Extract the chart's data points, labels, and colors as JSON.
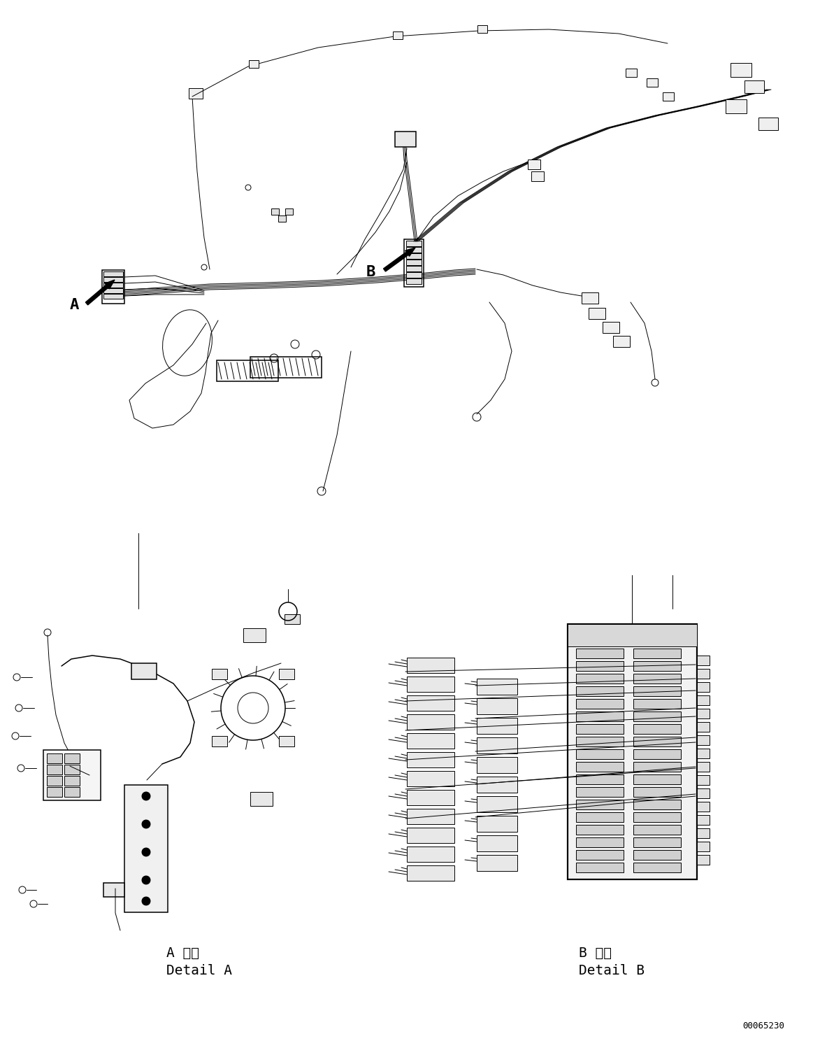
{
  "background_color": "#ffffff",
  "line_color": "#000000",
  "fig_width": 11.63,
  "fig_height": 14.88,
  "dpi": 100,
  "label_A": "A",
  "label_B": "B",
  "detail_A_line1": "A 詳細",
  "detail_A_line2": "Detail A",
  "detail_B_line1": "B 詳細",
  "detail_B_line2": "Detail B",
  "watermark": "00065230",
  "font_size_label": 16,
  "font_size_detail": 12,
  "font_size_watermark": 9
}
